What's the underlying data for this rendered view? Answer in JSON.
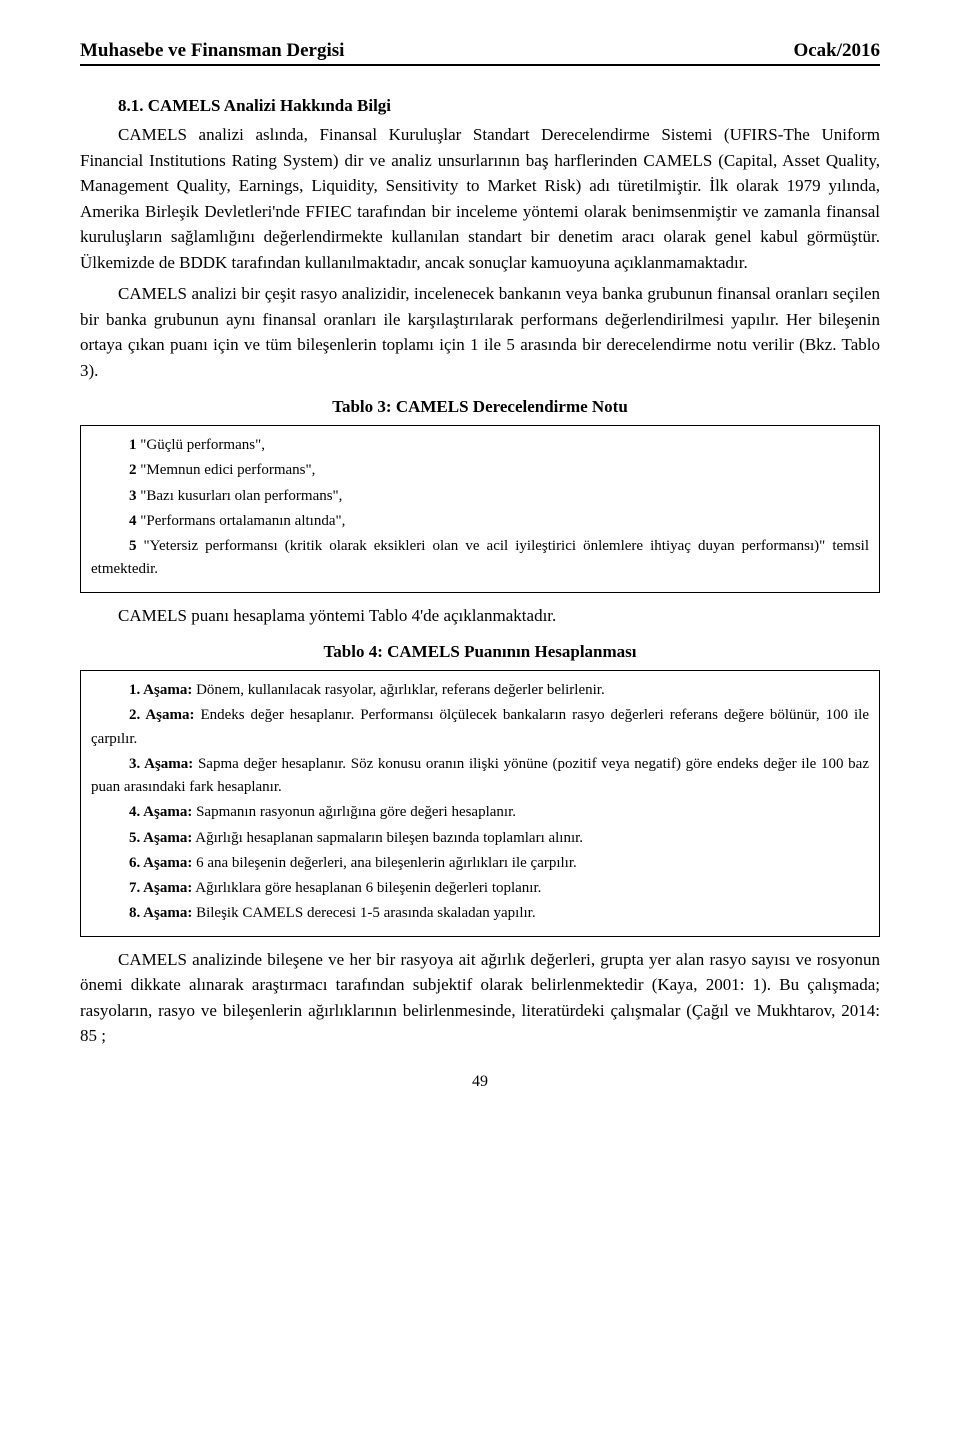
{
  "header": {
    "journal": "Muhasebe ve Finansman Dergisi",
    "issue": "Ocak/2016"
  },
  "section": {
    "number_title": "8.1. CAMELS Analizi Hakkında Bilgi"
  },
  "paragraphs": {
    "p1": "CAMELS analizi aslında, Finansal Kuruluşlar Standart Derecelendirme Sistemi (UFIRS-The Uniform Financial Institutions Rating System) dir ve analiz unsurlarının baş harflerinden CAMELS (Capital, Asset Quality, Management Quality, Earnings, Liquidity, Sensitivity to Market Risk) adı türetilmiştir. İlk olarak 1979 yılında, Amerika Birleşik Devletleri'nde FFIEC tarafından bir inceleme yöntemi olarak benimsenmiştir ve zamanla finansal kuruluşların sağlamlığını değerlendirmekte kullanılan standart bir denetim aracı olarak genel kabul görmüştür. Ülkemizde de BDDK tarafından kullanılmaktadır, ancak sonuçlar kamuoyuna açıklanmamaktadır.",
    "p2": "CAMELS analizi bir çeşit rasyo analizidir, incelenecek bankanın veya banka grubunun finansal oranları seçilen bir banka grubunun aynı finansal oranları ile karşılaştırılarak performans değerlendirilmesi yapılır. Her bileşenin ortaya çıkan puanı için ve tüm bileşenlerin toplamı için 1 ile 5 arasında bir derecelendirme notu verilir (Bkz. Tablo 3).",
    "under_t3": "CAMELS puanı hesaplama yöntemi Tablo 4'de açıklanmaktadır.",
    "p3": "CAMELS analizinde bileşene ve her bir rasyoya ait ağırlık değerleri, grupta yer alan rasyo sayısı ve rosyonun önemi dikkate alınarak araştırmacı tarafından subjektif olarak belirlenmektedir (Kaya, 2001: 1). Bu çalışmada; rasyoların, rasyo ve bileşenlerin ağırlıklarının belirlenmesinde, literatürdeki çalışmalar (Çağıl ve Mukhtarov, 2014: 85 ;"
  },
  "tables": {
    "t3": {
      "title": "Tablo 3: CAMELS Derecelendirme Notu",
      "rows": [
        {
          "num": "1",
          "text": " \"Güçlü performans\","
        },
        {
          "num": "2",
          "text": " \"Memnun edici performans\","
        },
        {
          "num": "3",
          "text": " \"Bazı kusurları olan performans\","
        },
        {
          "num": "4",
          "text": " \"Performans ortalamanın altında\","
        },
        {
          "num": "5",
          "text": " \"Yetersiz performansı (kritik olarak eksikleri olan ve acil iyileştirici önlemlere ihtiyaç duyan performansı)\" temsil etmektedir."
        }
      ]
    },
    "t4": {
      "title": "Tablo 4: CAMELS Puanının Hesaplanması",
      "rows": [
        {
          "label": "1. Aşama:",
          "text": " Dönem, kullanılacak rasyolar, ağırlıklar, referans değerler belirlenir."
        },
        {
          "label": "2. Aşama:",
          "text": " Endeks değer hesaplanır. Performansı ölçülecek bankaların rasyo değerleri referans değere bölünür, 100 ile çarpılır."
        },
        {
          "label": "3. Aşama:",
          "text": " Sapma değer hesaplanır. Söz konusu oranın ilişki yönüne (pozitif veya negatif) göre endeks değer ile 100 baz puan arasındaki fark hesaplanır."
        },
        {
          "label": "4. Aşama:",
          "text": " Sapmanın rasyonun ağırlığına göre değeri hesaplanır."
        },
        {
          "label": "5. Aşama:",
          "text": " Ağırlığı hesaplanan sapmaların bileşen bazında toplamları alınır."
        },
        {
          "label": "6. Aşama:",
          "text": " 6 ana bileşenin değerleri, ana bileşenlerin ağırlıkları ile çarpılır."
        },
        {
          "label": "7. Aşama:",
          "text": " Ağırlıklara göre hesaplanan 6 bileşenin değerleri toplanır."
        },
        {
          "label": "8. Aşama:",
          "text": " Bileşik CAMELS derecesi 1-5 arasında skaladan yapılır."
        }
      ]
    }
  },
  "pagenum": "49"
}
